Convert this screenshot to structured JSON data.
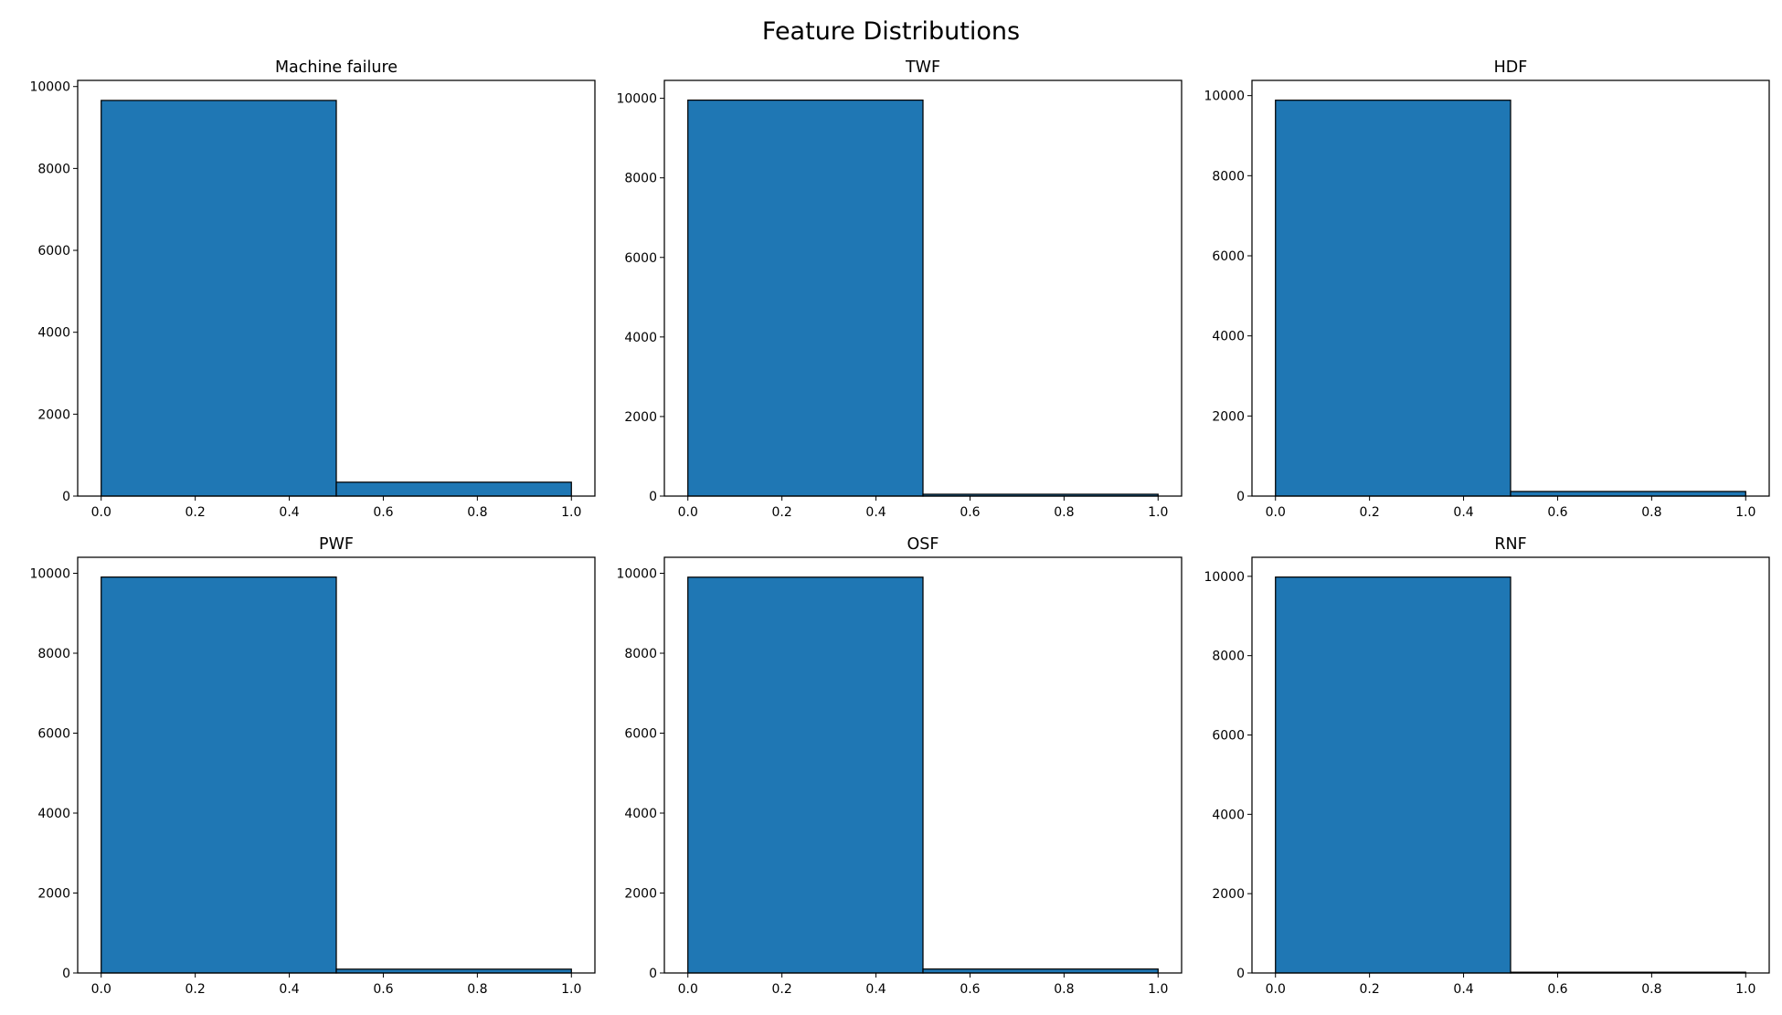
{
  "figure": {
    "title": "Feature Distributions"
  },
  "chart_data": [
    {
      "type": "bar",
      "title": "Machine failure",
      "bins": [
        [
          0.0,
          0.5
        ],
        [
          0.5,
          1.0
        ]
      ],
      "values": [
        9661,
        339
      ],
      "xlim": [
        -0.05,
        1.05
      ],
      "ylim": [
        0,
        10150
      ],
      "xticks": [
        0.0,
        0.2,
        0.4,
        0.6,
        0.8,
        1.0
      ],
      "xtick_labels": [
        "0.0",
        "0.2",
        "0.4",
        "0.6",
        "0.8",
        "1.0"
      ],
      "yticks": [
        0,
        2000,
        4000,
        6000,
        8000,
        10000
      ],
      "ytick_labels": [
        "0",
        "2000",
        "4000",
        "6000",
        "8000",
        "10000"
      ],
      "color": "#1f77b4",
      "edgecolor": "#000000",
      "grid": false
    },
    {
      "type": "bar",
      "title": "TWF",
      "bins": [
        [
          0.0,
          0.5
        ],
        [
          0.5,
          1.0
        ]
      ],
      "values": [
        9954,
        46
      ],
      "xlim": [
        -0.05,
        1.05
      ],
      "ylim": [
        0,
        10450
      ],
      "xticks": [
        0.0,
        0.2,
        0.4,
        0.6,
        0.8,
        1.0
      ],
      "xtick_labels": [
        "0.0",
        "0.2",
        "0.4",
        "0.6",
        "0.8",
        "1.0"
      ],
      "yticks": [
        0,
        2000,
        4000,
        6000,
        8000,
        10000
      ],
      "ytick_labels": [
        "0",
        "2000",
        "4000",
        "6000",
        "8000",
        "10000"
      ],
      "color": "#1f77b4",
      "edgecolor": "#000000",
      "grid": false
    },
    {
      "type": "bar",
      "title": "HDF",
      "bins": [
        [
          0.0,
          0.5
        ],
        [
          0.5,
          1.0
        ]
      ],
      "values": [
        9885,
        115
      ],
      "xlim": [
        -0.05,
        1.05
      ],
      "ylim": [
        0,
        10380
      ],
      "xticks": [
        0.0,
        0.2,
        0.4,
        0.6,
        0.8,
        1.0
      ],
      "xtick_labels": [
        "0.0",
        "0.2",
        "0.4",
        "0.6",
        "0.8",
        "1.0"
      ],
      "yticks": [
        0,
        2000,
        4000,
        6000,
        8000,
        10000
      ],
      "ytick_labels": [
        "0",
        "2000",
        "4000",
        "6000",
        "8000",
        "10000"
      ],
      "color": "#1f77b4",
      "edgecolor": "#000000",
      "grid": false
    },
    {
      "type": "bar",
      "title": "PWF",
      "bins": [
        [
          0.0,
          0.5
        ],
        [
          0.5,
          1.0
        ]
      ],
      "values": [
        9905,
        95
      ],
      "xlim": [
        -0.05,
        1.05
      ],
      "ylim": [
        0,
        10400
      ],
      "xticks": [
        0.0,
        0.2,
        0.4,
        0.6,
        0.8,
        1.0
      ],
      "xtick_labels": [
        "0.0",
        "0.2",
        "0.4",
        "0.6",
        "0.8",
        "1.0"
      ],
      "yticks": [
        0,
        2000,
        4000,
        6000,
        8000,
        10000
      ],
      "ytick_labels": [
        "0",
        "2000",
        "4000",
        "6000",
        "8000",
        "10000"
      ],
      "color": "#1f77b4",
      "edgecolor": "#000000",
      "grid": false
    },
    {
      "type": "bar",
      "title": "OSF",
      "bins": [
        [
          0.0,
          0.5
        ],
        [
          0.5,
          1.0
        ]
      ],
      "values": [
        9902,
        98
      ],
      "xlim": [
        -0.05,
        1.05
      ],
      "ylim": [
        0,
        10400
      ],
      "xticks": [
        0.0,
        0.2,
        0.4,
        0.6,
        0.8,
        1.0
      ],
      "xtick_labels": [
        "0.0",
        "0.2",
        "0.4",
        "0.6",
        "0.8",
        "1.0"
      ],
      "yticks": [
        0,
        2000,
        4000,
        6000,
        8000,
        10000
      ],
      "ytick_labels": [
        "0",
        "2000",
        "4000",
        "6000",
        "8000",
        "10000"
      ],
      "color": "#1f77b4",
      "edgecolor": "#000000",
      "grid": false
    },
    {
      "type": "bar",
      "title": "RNF",
      "bins": [
        [
          0.0,
          0.5
        ],
        [
          0.5,
          1.0
        ]
      ],
      "values": [
        9981,
        19
      ],
      "xlim": [
        -0.05,
        1.05
      ],
      "ylim": [
        0,
        10480
      ],
      "xticks": [
        0.0,
        0.2,
        0.4,
        0.6,
        0.8,
        1.0
      ],
      "xtick_labels": [
        "0.0",
        "0.2",
        "0.4",
        "0.6",
        "0.8",
        "1.0"
      ],
      "yticks": [
        0,
        2000,
        4000,
        6000,
        8000,
        10000
      ],
      "ytick_labels": [
        "0",
        "2000",
        "4000",
        "6000",
        "8000",
        "10000"
      ],
      "color": "#1f77b4",
      "edgecolor": "#000000",
      "grid": false
    }
  ]
}
